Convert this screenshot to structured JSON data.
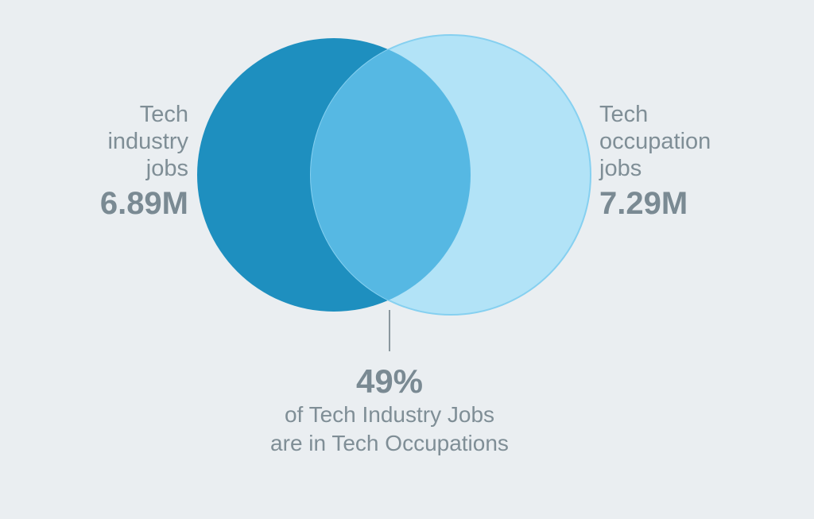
{
  "diagram": {
    "type": "venn",
    "left_set": {
      "label_lines": [
        "Tech",
        "industry",
        "jobs"
      ],
      "value": "6.89M",
      "color": "#1e8fbf"
    },
    "right_set": {
      "label_lines": [
        "Tech",
        "occupation",
        "jobs"
      ],
      "value": "7.29M",
      "color": "#b2e3f7",
      "stroke": "#86d0f0"
    },
    "overlap": {
      "percent": "49%",
      "caption_lines": [
        "of Tech Industry Jobs",
        "are in Tech Occupations"
      ],
      "color": "#56b8e3"
    },
    "leader_line_color": "#8a979e"
  }
}
